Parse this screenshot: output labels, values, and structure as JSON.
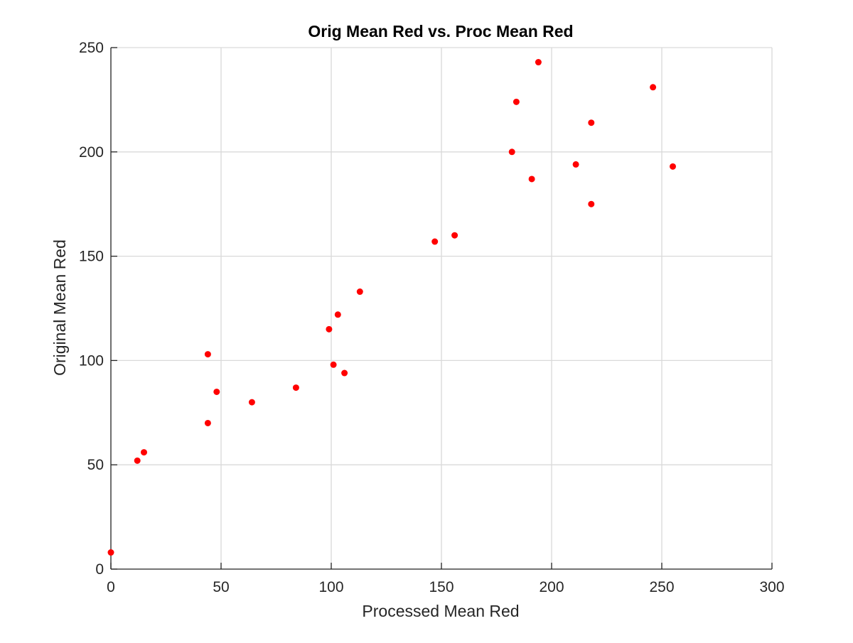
{
  "chart_data": {
    "type": "scatter",
    "title": "Orig Mean Red vs. Proc Mean Red",
    "xlabel": "Processed Mean Red",
    "ylabel": "Original Mean Red",
    "xlim": [
      0,
      300
    ],
    "ylim": [
      0,
      250
    ],
    "xticks": [
      0,
      50,
      100,
      150,
      200,
      250,
      300
    ],
    "yticks": [
      0,
      50,
      100,
      150,
      200,
      250
    ],
    "grid": true,
    "marker_color": "#ff0000",
    "series": [
      {
        "points": [
          {
            "x": 0,
            "y": 8
          },
          {
            "x": 12,
            "y": 52
          },
          {
            "x": 15,
            "y": 56
          },
          {
            "x": 44,
            "y": 70
          },
          {
            "x": 44,
            "y": 103
          },
          {
            "x": 48,
            "y": 85
          },
          {
            "x": 64,
            "y": 80
          },
          {
            "x": 84,
            "y": 87
          },
          {
            "x": 99,
            "y": 115
          },
          {
            "x": 101,
            "y": 98
          },
          {
            "x": 103,
            "y": 122
          },
          {
            "x": 106,
            "y": 94
          },
          {
            "x": 113,
            "y": 133
          },
          {
            "x": 147,
            "y": 157
          },
          {
            "x": 156,
            "y": 160
          },
          {
            "x": 182,
            "y": 200
          },
          {
            "x": 184,
            "y": 224
          },
          {
            "x": 191,
            "y": 187
          },
          {
            "x": 194,
            "y": 243
          },
          {
            "x": 211,
            "y": 194
          },
          {
            "x": 218,
            "y": 175
          },
          {
            "x": 218,
            "y": 214
          },
          {
            "x": 246,
            "y": 231
          },
          {
            "x": 255,
            "y": 193
          }
        ]
      }
    ]
  }
}
